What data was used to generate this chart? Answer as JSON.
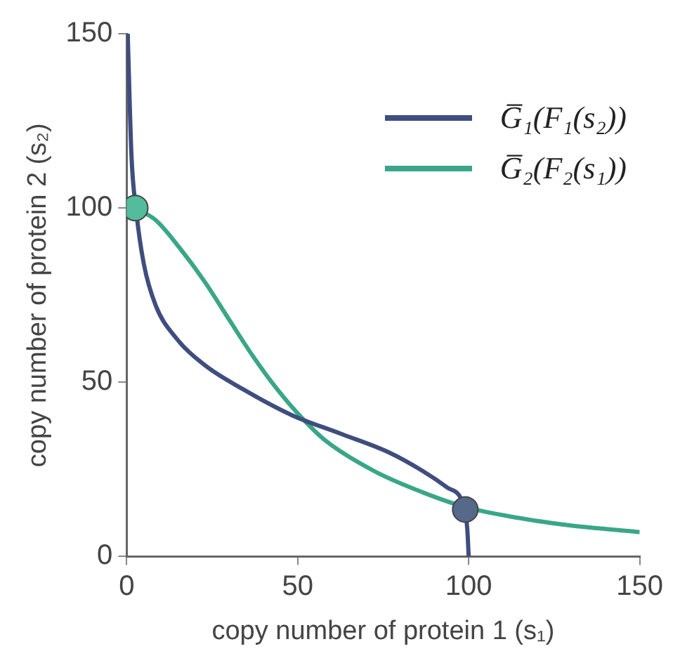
{
  "chart_data": {
    "type": "line",
    "xlabel": "copy number of protein 1 (s₁)",
    "ylabel": "copy number of protein 2 (s₂)",
    "xlim": [
      0,
      150
    ],
    "ylim": [
      0,
      150
    ],
    "xticks": [
      0,
      50,
      100,
      150
    ],
    "yticks": [
      0,
      50,
      100,
      150
    ],
    "grid": false,
    "legend": "top right",
    "marker": "none",
    "line_style": "solid",
    "series": [
      {
        "name": "G̅₁(F₁(s₂))",
        "color": "#3f4d7f",
        "x": [
          0.3,
          1.4,
          2.8,
          5,
          8.5,
          14.2,
          22.7,
          34,
          48.2,
          62.4,
          76.6,
          86.6,
          93.7,
          98.6,
          99.6,
          100
        ],
        "values": [
          150,
          115,
          99,
          84,
          72,
          63,
          55,
          48,
          40.6,
          35.3,
          29.9,
          24.5,
          19.8,
          14.4,
          7.7,
          0
        ]
      },
      {
        "name": "G̅₂(F₂(s₁))",
        "color": "#3aa688",
        "x": [
          2.6,
          8.5,
          15.6,
          22.7,
          29.8,
          36.9,
          44,
          51,
          58.2,
          72.4,
          86.6,
          99.3,
          115,
          129,
          150
        ],
        "values": [
          99.9,
          96.5,
          88.4,
          79,
          68.2,
          57.5,
          48,
          40,
          33.2,
          24.5,
          18.4,
          14.1,
          11,
          9,
          7
        ]
      },
      {
        "type": "scatter",
        "marker": "circle",
        "color": "#52bc9c",
        "x": [
          2.5
        ],
        "values": [
          100
        ]
      },
      {
        "type": "scatter",
        "marker": "circle",
        "color": "#56698a",
        "x": [
          99
        ],
        "values": [
          13.5
        ]
      }
    ]
  }
}
